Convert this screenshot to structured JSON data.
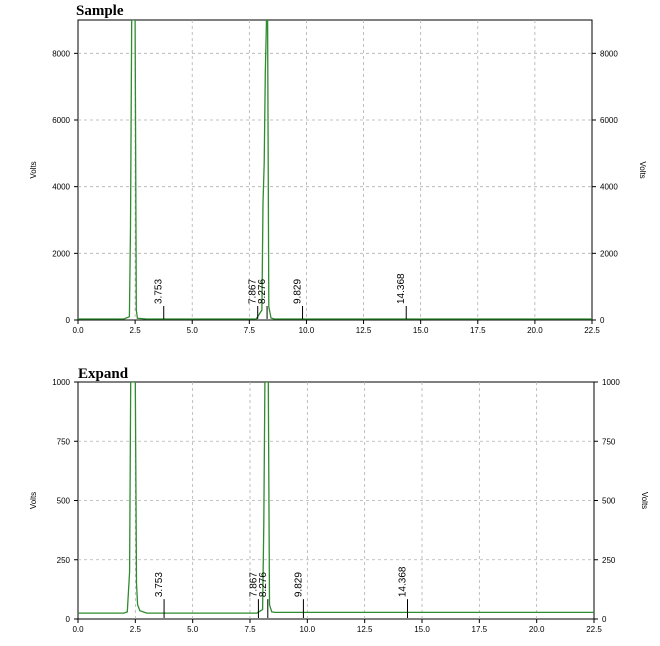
{
  "chart_data": [
    {
      "type": "line",
      "title": "Sample",
      "ylabel": "Volts",
      "xlim": [
        0,
        22.5
      ],
      "ylim": [
        0,
        9000
      ],
      "x_ticks": [
        "0.0",
        "2.5",
        "5.0",
        "7.5",
        "10.0",
        "12.5",
        "15.0",
        "17.5",
        "20.0",
        "22.5"
      ],
      "y_ticks": [
        "0",
        "2000",
        "4000",
        "6000",
        "8000"
      ],
      "y_tick_values": [
        0,
        2000,
        4000,
        6000,
        8000
      ],
      "grid": true,
      "line_color": "#2e8b2e",
      "series": [
        {
          "x": [
            0,
            2.0,
            2.25,
            2.3,
            2.35,
            2.4,
            2.45,
            2.5,
            2.55,
            2.6,
            3.0,
            7.8,
            8.05,
            8.1,
            8.15,
            8.2,
            8.25,
            8.3,
            8.35,
            8.45,
            8.6,
            22.5
          ],
          "y": [
            30,
            30,
            100,
            2800,
            9000,
            9000,
            9000,
            9000,
            300,
            50,
            30,
            30,
            300,
            3500,
            4700,
            7400,
            9000,
            9000,
            400,
            60,
            30,
            30
          ]
        }
      ],
      "peak_labels": [
        {
          "x": 3.753,
          "label": "3.753",
          "marker_y": 180
        },
        {
          "x": 7.867,
          "label": "7.867",
          "marker_y": 180
        },
        {
          "x": 8.276,
          "label": "8.276",
          "marker_y": 180
        },
        {
          "x": 9.829,
          "label": "9.829",
          "marker_y": 180
        },
        {
          "x": 14.368,
          "label": "14.368",
          "marker_y": 180
        }
      ]
    },
    {
      "type": "line",
      "title": "Expand",
      "ylabel": "Volts",
      "xlim": [
        0,
        22.5
      ],
      "ylim": [
        0,
        1000
      ],
      "x_ticks": [
        "0.0",
        "2.5",
        "5.0",
        "7.5",
        "10.0",
        "12.5",
        "15.0",
        "17.5",
        "20.0",
        "22.5"
      ],
      "y_ticks": [
        "0",
        "250",
        "500",
        "750",
        "1000"
      ],
      "y_tick_values": [
        0,
        250,
        500,
        750,
        1000
      ],
      "grid": true,
      "line_color": "#2e8b2e",
      "series": [
        {
          "x": [
            0,
            2.0,
            2.15,
            2.25,
            2.3,
            2.4,
            2.5,
            2.55,
            2.6,
            2.7,
            3.0,
            7.8,
            8.05,
            8.1,
            8.15,
            8.25,
            8.3,
            8.35,
            8.45,
            8.6,
            22.5
          ],
          "y": [
            25,
            25,
            30,
            200,
            1000,
            1000,
            1000,
            150,
            60,
            35,
            25,
            25,
            40,
            400,
            1000,
            1000,
            1000,
            60,
            30,
            28,
            28
          ]
        }
      ],
      "peak_labels": [
        {
          "x": 3.753,
          "label": "3.753",
          "marker_y": 50
        },
        {
          "x": 7.867,
          "label": "7.867",
          "marker_y": 50
        },
        {
          "x": 8.276,
          "label": "8.276",
          "marker_y": 50
        },
        {
          "x": 9.829,
          "label": "9.829",
          "marker_y": 50
        },
        {
          "x": 14.368,
          "label": "14.368",
          "marker_y": 50
        }
      ]
    }
  ]
}
